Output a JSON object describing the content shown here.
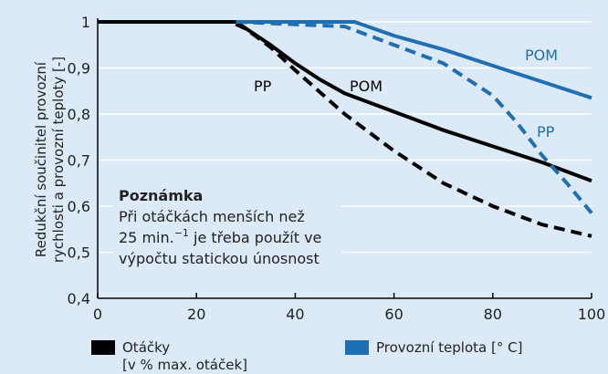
{
  "chart_data": {
    "type": "line",
    "y_label": [
      "Redukční součinitel provozní",
      "rychlosti a provozní teploty [-]"
    ],
    "xlim": [
      0,
      100
    ],
    "xticks": [
      0,
      20,
      40,
      60,
      80,
      100
    ],
    "ylim": [
      0.4,
      1
    ],
    "yticks": [
      {
        "value": 0.4,
        "label": "0,4"
      },
      {
        "value": 0.5,
        "label": "0,5"
      },
      {
        "value": 0.6,
        "label": "0,6"
      },
      {
        "value": 0.7,
        "label": "0,7"
      },
      {
        "value": 0.8,
        "label": "0,8"
      },
      {
        "value": 0.9,
        "label": "0,9"
      },
      1
    ],
    "grid": true,
    "series": [
      {
        "name": "POM",
        "color": "#000000",
        "dashed": false,
        "x": [
          0,
          28,
          35,
          40,
          45,
          50,
          55,
          60,
          70,
          80,
          90,
          100
        ],
        "values": [
          1,
          1,
          0.95,
          0.91,
          0.875,
          0.845,
          0.825,
          0.805,
          0.765,
          0.73,
          0.695,
          0.655
        ]
      },
      {
        "name": "PP",
        "color": "#000000",
        "dashed": true,
        "x": [
          0,
          27,
          30,
          35,
          40,
          50,
          60,
          70,
          80,
          90,
          100
        ],
        "values": [
          1,
          1,
          0.985,
          0.945,
          0.895,
          0.8,
          0.72,
          0.65,
          0.6,
          0.56,
          0.535
        ]
      },
      {
        "name": "POM",
        "color": "#1f6fb5",
        "dashed": false,
        "x": [
          28,
          52,
          60,
          70,
          80,
          90,
          100
        ],
        "values": [
          1,
          1,
          0.97,
          0.94,
          0.905,
          0.87,
          0.835
        ]
      },
      {
        "name": "PP",
        "color": "#1f6fb5",
        "dashed": true,
        "x": [
          28,
          50,
          55,
          60,
          70,
          80,
          85,
          90,
          95,
          100
        ],
        "values": [
          1,
          0.99,
          0.97,
          0.95,
          0.91,
          0.84,
          0.78,
          0.71,
          0.65,
          0.585
        ]
      }
    ],
    "note": {
      "title": "Poznámka",
      "line1": "Při otáčkách menších než",
      "line2a": "25 min.",
      "line2sup": "−1",
      "line2b": " je třeba použít ve",
      "line3": "výpočtu statickou únosnost"
    },
    "legend": [
      {
        "label": [
          "Otáčky",
          "[v % max. otáček]"
        ],
        "color": "#000000"
      },
      {
        "label": [
          "Provozní teplota [° C]"
        ],
        "color": "#1f6fb5"
      }
    ]
  }
}
